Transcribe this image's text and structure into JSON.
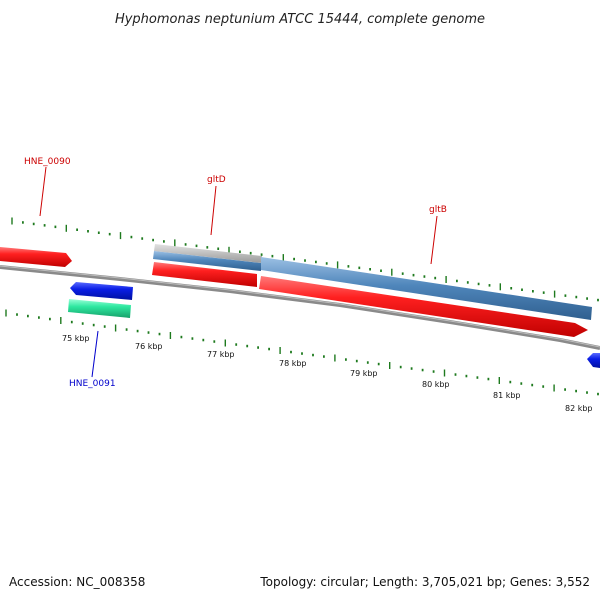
{
  "title": "Hyphomonas neptunium ATCC 15444, complete genome",
  "footer": {
    "accession": "Accession: NC_008358",
    "summary": "Topology: circular; Length: 3,705,021 bp; Genes: 3,552"
  },
  "scale": {
    "labels": [
      "75 kbp",
      "76 kbp",
      "77 kbp",
      "78 kbp",
      "79 kbp",
      "80 kbp",
      "81 kbp",
      "82 kbp"
    ]
  },
  "genes": [
    {
      "name": "HNE_0090",
      "color": "#cc0000"
    },
    {
      "name": "gltD",
      "color": "#cc0000"
    },
    {
      "name": "gltB",
      "color": "#cc0000"
    },
    {
      "name": "HNE_0091",
      "color": "#0000cc"
    }
  ],
  "colors": {
    "forward_gene": "#e8141c",
    "reverse_gene": "#0a1ee6",
    "rna_gene": "#2ee8a0",
    "protein_feature": "#4f86bb",
    "gray_feature": "#b4b4b4",
    "backbone": "#7a7a7a",
    "ticks": "#1e7a1e"
  }
}
